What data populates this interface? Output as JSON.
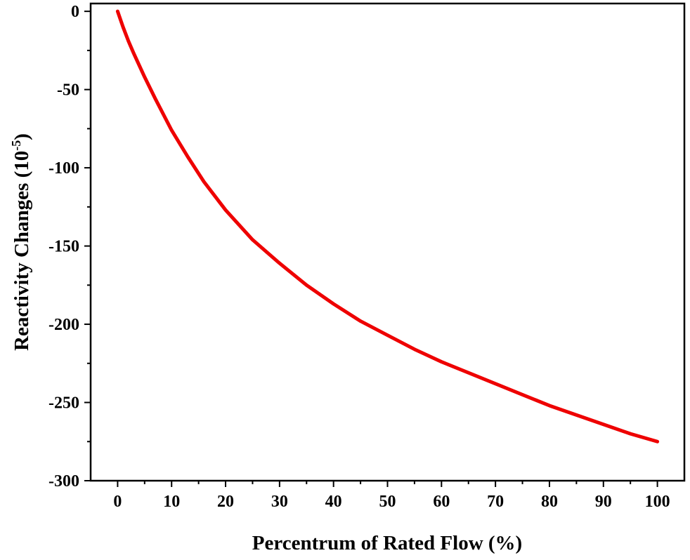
{
  "chart_data": {
    "type": "line",
    "title": "",
    "xlabel": "Percentrum of Rated Flow (%)",
    "ylabel_prefix": "Reactivity Changes (10",
    "ylabel_exponent": "-5",
    "ylabel_suffix": ")",
    "xlim": [
      -5,
      105
    ],
    "ylim": [
      -300,
      5
    ],
    "x_ticks": [
      0,
      10,
      20,
      30,
      40,
      50,
      60,
      70,
      80,
      90,
      100
    ],
    "x_tick_labels": [
      "0",
      "10",
      "20",
      "30",
      "40",
      "50",
      "60",
      "70",
      "80",
      "90",
      "100"
    ],
    "y_ticks": [
      0,
      -50,
      -100,
      -150,
      -200,
      -250,
      -300
    ],
    "y_tick_labels": [
      "0",
      "-50",
      "-100",
      "-150",
      "-200",
      "-250",
      "-300"
    ],
    "grid": false,
    "legend": "none",
    "series": [
      {
        "color": "#ee0000",
        "x": [
          0,
          1,
          2,
          3,
          5,
          7,
          10,
          13,
          16,
          20,
          25,
          30,
          35,
          40,
          45,
          50,
          55,
          60,
          65,
          70,
          75,
          80,
          85,
          90,
          95,
          100
        ],
        "y": [
          0,
          -10,
          -19,
          -27,
          -42,
          -56,
          -76,
          -93,
          -109,
          -127,
          -146,
          -161,
          -175,
          -187,
          -198,
          -207,
          -216,
          -224,
          -231,
          -238,
          -245,
          -252,
          -258,
          -264,
          -270,
          -275
        ]
      }
    ]
  }
}
